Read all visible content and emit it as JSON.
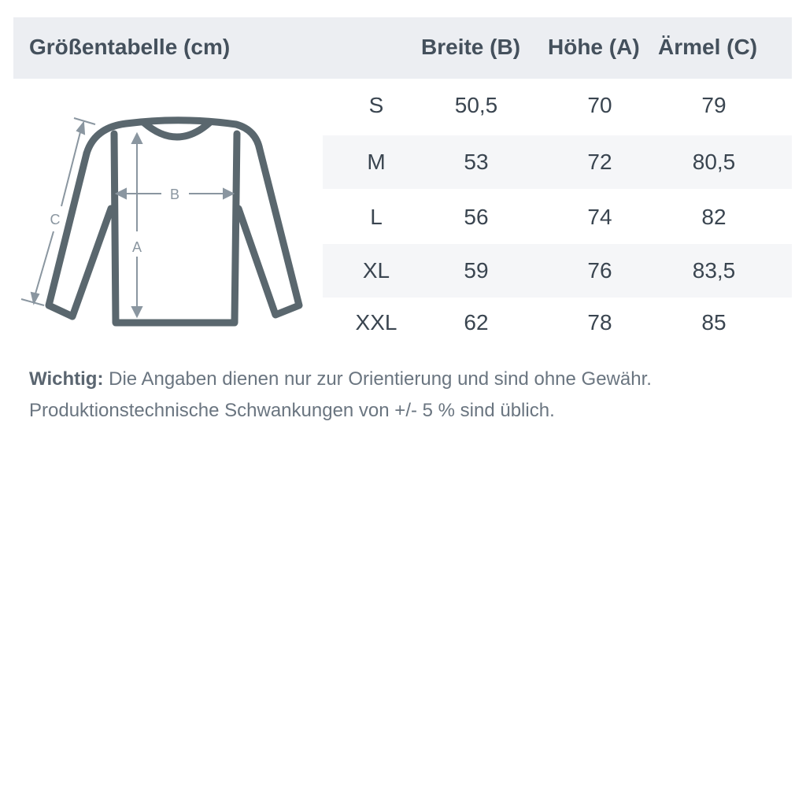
{
  "header": {
    "title": "Größentabelle (cm)",
    "columns": [
      "Breite (B)",
      "Höhe (A)",
      "Ärmel (C)"
    ]
  },
  "diagram": {
    "labels": {
      "a": "A",
      "b": "B",
      "c": "C"
    },
    "garment_color": "#5a676e",
    "arrow_color": "#8a96a0"
  },
  "rows": [
    {
      "size": "S",
      "breite": "50,5",
      "hoehe": "70",
      "aermel": "79"
    },
    {
      "size": "M",
      "breite": "53",
      "hoehe": "72",
      "aermel": "80,5"
    },
    {
      "size": "L",
      "breite": "56",
      "hoehe": "74",
      "aermel": "82"
    },
    {
      "size": "XL",
      "breite": "59",
      "hoehe": "76",
      "aermel": "83,5"
    },
    {
      "size": "XXL",
      "breite": "62",
      "hoehe": "78",
      "aermel": "85"
    }
  ],
  "note": {
    "label": "Wichtig:",
    "text": " Die Angaben dienen nur zur Orientierung und sind ohne Gewähr.",
    "line2": "Produktionstechnische Schwankungen von +/- 5 % sind üblich."
  }
}
